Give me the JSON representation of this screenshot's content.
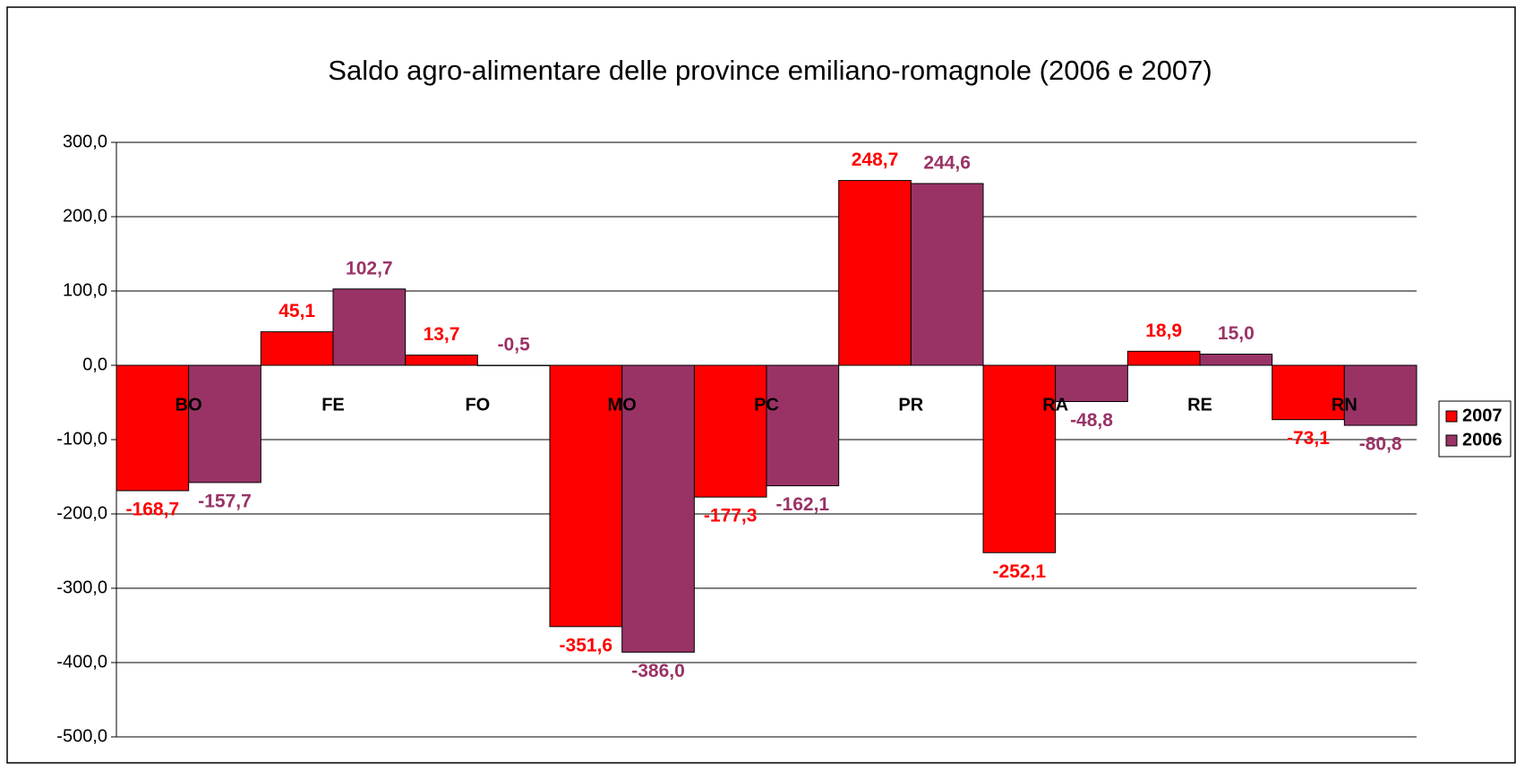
{
  "chart_data": {
    "type": "bar",
    "title": "Saldo agro-alimentare delle province emiliano-romagnole (2006 e 2007)",
    "categories": [
      "BO",
      "FE",
      "FO",
      "MO",
      "PC",
      "PR",
      "RA",
      "RE",
      "RN"
    ],
    "series": [
      {
        "name": "2007",
        "color": "#ff0000",
        "values": [
          -168.7,
          45.1,
          13.7,
          -351.6,
          -177.3,
          248.7,
          -252.1,
          18.9,
          -73.1
        ],
        "value_labels": [
          "-168,7",
          "45,1",
          "13,7",
          "-351,6",
          "-177,3",
          "248,7",
          "-252,1",
          "18,9",
          "-73,1"
        ]
      },
      {
        "name": "2006",
        "color": "#993366",
        "values": [
          -157.7,
          102.7,
          -0.5,
          -386.0,
          -162.1,
          244.6,
          -48.8,
          15.0,
          -80.8
        ],
        "value_labels": [
          "-157,7",
          "102,7",
          "-0,5",
          "-386,0",
          "-162,1",
          "244,6",
          "-48,8",
          "15,0",
          "-80,8"
        ]
      }
    ],
    "ylim": [
      -500,
      300
    ],
    "yticks": [
      {
        "value": -500,
        "label": "-500,0"
      },
      {
        "value": -400,
        "label": "-400,0"
      },
      {
        "value": -300,
        "label": "-300,0"
      },
      {
        "value": -200,
        "label": "-200,0"
      },
      {
        "value": -100,
        "label": "-100,0"
      },
      {
        "value": 0,
        "label": "0,0"
      },
      {
        "value": 100,
        "label": "100,0"
      },
      {
        "value": 200,
        "label": "200,0"
      },
      {
        "value": 300,
        "label": "300,0"
      }
    ],
    "grid": true,
    "legend": "right"
  }
}
